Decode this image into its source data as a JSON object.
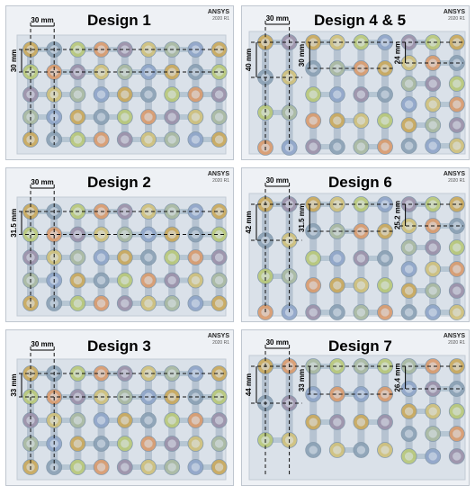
{
  "logo": {
    "brand": "ANSYS",
    "version": "2020 R1"
  },
  "panels": [
    {
      "title": "Design 1",
      "h_dim": "30 mm",
      "v_dims": [
        "30 mm"
      ]
    },
    {
      "title": "Design 4 & 5",
      "h_dim": "30 mm",
      "v_dims": [
        "40 mm",
        "30 mm",
        "24 mm"
      ]
    },
    {
      "title": "Design 2",
      "h_dim": "30 mm",
      "v_dims": [
        "31.5 mm"
      ]
    },
    {
      "title": "Design 6",
      "h_dim": "30 mm",
      "v_dims": [
        "42 mm",
        "31.5 mm",
        "25.2 mm"
      ]
    },
    {
      "title": "Design 3",
      "h_dim": "30 mm",
      "v_dims": [
        "33 mm"
      ]
    },
    {
      "title": "Design 7",
      "h_dim": "30 mm",
      "v_dims": [
        "44 mm",
        "33 mm",
        "26.4 mm"
      ]
    }
  ],
  "colors": {
    "panel_bg": "#eef1f5",
    "pillar": "#a9b8c8",
    "bridge": "#9fb4c4",
    "dashed": "#111111",
    "pads": [
      "#c9a85a",
      "#8aa0b4",
      "#b8c878",
      "#d99a6c",
      "#9a8fa8",
      "#cfc07a",
      "#a8b8a0",
      "#8ea4c8"
    ]
  }
}
